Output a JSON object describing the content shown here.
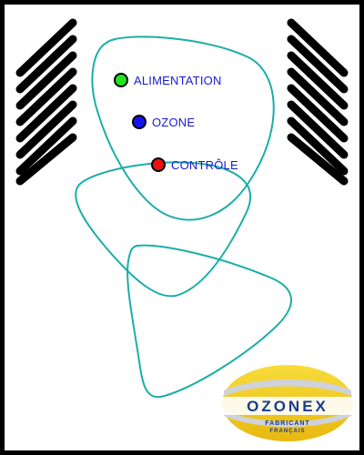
{
  "indicators": [
    {
      "label": "ALIMENTATION",
      "color": "#1ee61e"
    },
    {
      "label": "OZONE",
      "color": "#1414f0"
    },
    {
      "label": "CONTRÔLE",
      "color": "#ee1111"
    }
  ],
  "logo": {
    "brand": "OZONEX",
    "tagline_1": "FABRICANT",
    "tagline_2": "FRANÇAIS"
  },
  "colors": {
    "frame": "#000000",
    "vents": "#000000",
    "outline": "#1aaea8",
    "label_text": "#1a1ad0",
    "logo_gold": "#f2cc1a",
    "logo_silver": "#cfd2d8",
    "logo_text": "#1a3c8c"
  }
}
